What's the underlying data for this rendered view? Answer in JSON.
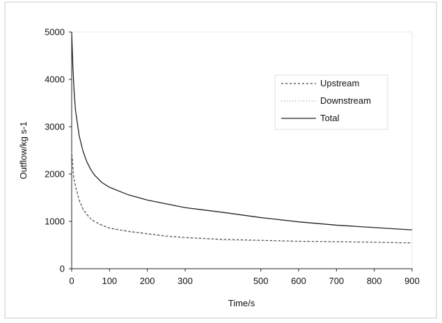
{
  "chart_data": {
    "type": "line",
    "title": "",
    "xlabel": "Time/s",
    "ylabel": "Outflow/kg s-1",
    "xlim": [
      0,
      900
    ],
    "ylim": [
      0,
      5000
    ],
    "x_ticks": [
      0,
      100,
      200,
      300,
      500,
      600,
      700,
      800,
      900
    ],
    "y_ticks": [
      0,
      1000,
      2000,
      3000,
      4000,
      5000
    ],
    "grid": false,
    "legend_position": "top-right",
    "series": [
      {
        "name": "Upstream",
        "style": "dashed",
        "x": [
          0,
          5,
          10,
          20,
          30,
          40,
          50,
          60,
          80,
          100,
          150,
          200,
          250,
          300,
          350,
          400,
          500,
          600,
          700,
          800,
          900
        ],
        "y": [
          2500,
          1950,
          1750,
          1450,
          1260,
          1150,
          1060,
          1000,
          920,
          860,
          790,
          740,
          690,
          660,
          640,
          620,
          600,
          580,
          570,
          560,
          545
        ]
      },
      {
        "name": "Downstream",
        "style": "dotted",
        "x": [
          0,
          5,
          10,
          20,
          30,
          40,
          50,
          60,
          80,
          100,
          150,
          200,
          250,
          300,
          350,
          400,
          500,
          600,
          700,
          800,
          900
        ],
        "y": [
          2450,
          1900,
          1700,
          1420,
          1240,
          1130,
          1050,
          990,
          910,
          850,
          780,
          730,
          680,
          650,
          630,
          605,
          590,
          575,
          565,
          555,
          540
        ]
      },
      {
        "name": "Total",
        "style": "solid",
        "x": [
          0,
          3,
          6,
          10,
          20,
          30,
          40,
          50,
          60,
          80,
          100,
          150,
          200,
          250,
          300,
          350,
          400,
          500,
          600,
          700,
          800,
          900
        ],
        "y": [
          5000,
          4300,
          3800,
          3350,
          2800,
          2480,
          2260,
          2100,
          1980,
          1820,
          1720,
          1560,
          1450,
          1370,
          1290,
          1240,
          1190,
          1080,
          990,
          920,
          870,
          820
        ]
      }
    ]
  }
}
